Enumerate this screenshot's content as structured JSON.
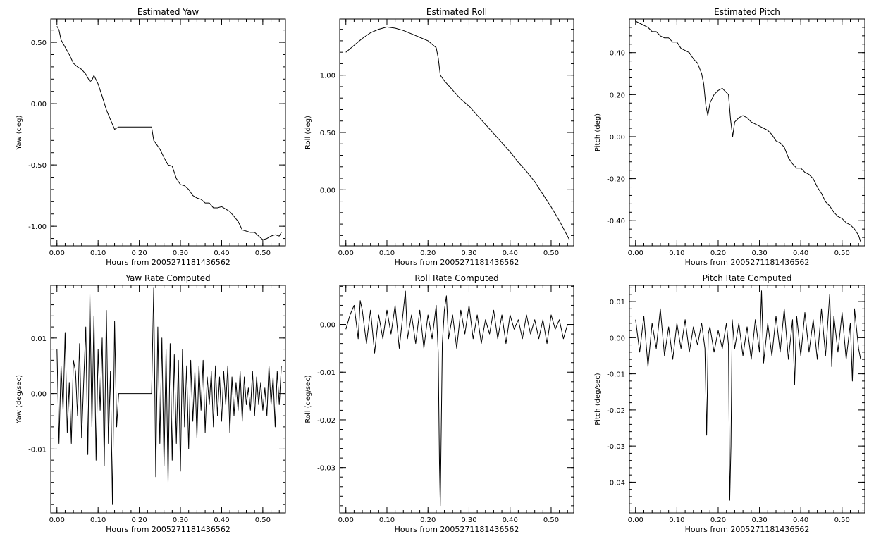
{
  "colors": {
    "background": "#ffffff",
    "ink": "#000000"
  },
  "chart_data": [
    {
      "type": "line",
      "title": "Estimated Yaw",
      "xlabel": "Hours from 2005271181436562",
      "ylabel": "Yaw (deg)",
      "xlim": [
        -0.015,
        0.555
      ],
      "ylim": [
        -1.16,
        0.69
      ],
      "xticks": [
        0,
        0.1,
        0.2,
        0.3,
        0.4,
        0.5
      ],
      "xticklabels": [
        "0.00",
        "0.10",
        "0.20",
        "0.30",
        "0.40",
        "0.50"
      ],
      "yticks": [
        0.5,
        0,
        -0.5,
        -1.0
      ],
      "yticklabels": [
        "0.50",
        "0.00",
        "-0.50",
        "-1.00"
      ],
      "grid": false,
      "series": [
        {
          "x": [
            0.0,
            0.005,
            0.01,
            0.02,
            0.03,
            0.04,
            0.05,
            0.06,
            0.07,
            0.08,
            0.085,
            0.09,
            0.1,
            0.11,
            0.12,
            0.13,
            0.14,
            0.15,
            0.2,
            0.23,
            0.235,
            0.25,
            0.26,
            0.27,
            0.28,
            0.29,
            0.3,
            0.31,
            0.32,
            0.33,
            0.34,
            0.35,
            0.36,
            0.37,
            0.38,
            0.39,
            0.4,
            0.41,
            0.42,
            0.43,
            0.44,
            0.45,
            0.46,
            0.47,
            0.48,
            0.49,
            0.5,
            0.51,
            0.52,
            0.53,
            0.54,
            0.545
          ],
          "y": [
            0.63,
            0.6,
            0.52,
            0.46,
            0.4,
            0.33,
            0.3,
            0.28,
            0.24,
            0.18,
            0.19,
            0.23,
            0.16,
            0.06,
            -0.05,
            -0.13,
            -0.21,
            -0.19,
            -0.19,
            -0.19,
            -0.3,
            -0.37,
            -0.44,
            -0.5,
            -0.51,
            -0.61,
            -0.66,
            -0.67,
            -0.7,
            -0.75,
            -0.77,
            -0.78,
            -0.81,
            -0.81,
            -0.85,
            -0.85,
            -0.84,
            -0.86,
            -0.88,
            -0.92,
            -0.96,
            -1.03,
            -1.04,
            -1.05,
            -1.05,
            -1.08,
            -1.11,
            -1.1,
            -1.08,
            -1.07,
            -1.08,
            -1.05
          ]
        }
      ]
    },
    {
      "type": "line",
      "title": "Estimated Roll",
      "xlabel": "Hours from 2005271181436562",
      "ylabel": "Roll (deg)",
      "xlim": [
        -0.015,
        0.555
      ],
      "ylim": [
        -0.49,
        1.49
      ],
      "xticks": [
        0,
        0.1,
        0.2,
        0.3,
        0.4,
        0.5
      ],
      "xticklabels": [
        "0.00",
        "0.10",
        "0.20",
        "0.30",
        "0.40",
        "0.50"
      ],
      "yticks": [
        1.0,
        0.5,
        0
      ],
      "yticklabels": [
        "1.00",
        "0.50",
        "0.00"
      ],
      "grid": false,
      "series": [
        {
          "x": [
            0.0,
            0.02,
            0.04,
            0.06,
            0.08,
            0.1,
            0.12,
            0.14,
            0.16,
            0.18,
            0.2,
            0.22,
            0.225,
            0.23,
            0.24,
            0.26,
            0.28,
            0.3,
            0.32,
            0.34,
            0.36,
            0.38,
            0.4,
            0.42,
            0.44,
            0.46,
            0.48,
            0.5,
            0.52,
            0.545
          ],
          "y": [
            1.2,
            1.26,
            1.32,
            1.37,
            1.4,
            1.42,
            1.41,
            1.39,
            1.36,
            1.33,
            1.3,
            1.24,
            1.15,
            1.0,
            0.95,
            0.87,
            0.79,
            0.73,
            0.65,
            0.57,
            0.49,
            0.41,
            0.33,
            0.24,
            0.16,
            0.07,
            -0.04,
            -0.15,
            -0.27,
            -0.44
          ]
        }
      ]
    },
    {
      "type": "line",
      "title": "Estimated Pitch",
      "xlabel": "Hours from 2005271181436562",
      "ylabel": "Pitch (deg)",
      "xlim": [
        -0.015,
        0.555
      ],
      "ylim": [
        -0.52,
        0.56
      ],
      "xticks": [
        0,
        0.1,
        0.2,
        0.3,
        0.4,
        0.5
      ],
      "xticklabels": [
        "0.00",
        "0.10",
        "0.20",
        "0.30",
        "0.40",
        "0.50"
      ],
      "yticks": [
        0.4,
        0.2,
        0,
        -0.2,
        -0.4
      ],
      "yticklabels": [
        "0.40",
        "0.20",
        "0.00",
        "-0.20",
        "-0.40"
      ],
      "grid": false,
      "series": [
        {
          "x": [
            0.0,
            0.01,
            0.02,
            0.03,
            0.04,
            0.05,
            0.06,
            0.07,
            0.08,
            0.09,
            0.1,
            0.11,
            0.12,
            0.13,
            0.14,
            0.15,
            0.16,
            0.165,
            0.17,
            0.175,
            0.18,
            0.19,
            0.2,
            0.21,
            0.22,
            0.225,
            0.23,
            0.235,
            0.24,
            0.25,
            0.26,
            0.27,
            0.28,
            0.29,
            0.3,
            0.31,
            0.32,
            0.33,
            0.34,
            0.35,
            0.36,
            0.37,
            0.38,
            0.39,
            0.4,
            0.41,
            0.42,
            0.43,
            0.44,
            0.45,
            0.46,
            0.47,
            0.48,
            0.49,
            0.5,
            0.51,
            0.52,
            0.53,
            0.54,
            0.545
          ],
          "y": [
            0.55,
            0.54,
            0.53,
            0.52,
            0.5,
            0.5,
            0.48,
            0.47,
            0.47,
            0.45,
            0.45,
            0.42,
            0.41,
            0.4,
            0.37,
            0.35,
            0.3,
            0.25,
            0.15,
            0.1,
            0.16,
            0.2,
            0.22,
            0.23,
            0.21,
            0.2,
            0.08,
            0.0,
            0.07,
            0.09,
            0.1,
            0.09,
            0.07,
            0.06,
            0.05,
            0.04,
            0.03,
            0.01,
            -0.02,
            -0.03,
            -0.05,
            -0.1,
            -0.13,
            -0.15,
            -0.15,
            -0.17,
            -0.18,
            -0.2,
            -0.24,
            -0.27,
            -0.31,
            -0.33,
            -0.36,
            -0.38,
            -0.39,
            -0.41,
            -0.42,
            -0.44,
            -0.47,
            -0.5
          ]
        }
      ]
    },
    {
      "type": "line",
      "title": "Yaw Rate Computed",
      "xlabel": "Hours from 2005271181436562",
      "ylabel": "Yaw (deg/sec)",
      "xlim": [
        -0.015,
        0.555
      ],
      "ylim": [
        -0.0215,
        0.0195
      ],
      "xticks": [
        0,
        0.1,
        0.2,
        0.3,
        0.4,
        0.5
      ],
      "xticklabels": [
        "0.00",
        "0.10",
        "0.20",
        "0.30",
        "0.40",
        "0.50"
      ],
      "yticks": [
        0.01,
        0,
        -0.01
      ],
      "yticklabels": [
        "0.01",
        "0.00",
        "-0.01"
      ],
      "grid": false,
      "series": [
        {
          "x": [
            0.0,
            0.005,
            0.01,
            0.015,
            0.02,
            0.025,
            0.03,
            0.035,
            0.04,
            0.045,
            0.05,
            0.055,
            0.06,
            0.065,
            0.07,
            0.075,
            0.08,
            0.085,
            0.09,
            0.095,
            0.1,
            0.105,
            0.11,
            0.115,
            0.12,
            0.125,
            0.13,
            0.135,
            0.14,
            0.145,
            0.15,
            0.23,
            0.235,
            0.24,
            0.245,
            0.25,
            0.255,
            0.26,
            0.265,
            0.27,
            0.275,
            0.28,
            0.285,
            0.29,
            0.295,
            0.3,
            0.305,
            0.31,
            0.315,
            0.32,
            0.325,
            0.33,
            0.335,
            0.34,
            0.345,
            0.35,
            0.355,
            0.36,
            0.365,
            0.37,
            0.375,
            0.38,
            0.385,
            0.39,
            0.395,
            0.4,
            0.405,
            0.41,
            0.415,
            0.42,
            0.425,
            0.43,
            0.435,
            0.44,
            0.445,
            0.45,
            0.455,
            0.46,
            0.465,
            0.47,
            0.475,
            0.48,
            0.485,
            0.49,
            0.495,
            0.5,
            0.505,
            0.51,
            0.515,
            0.52,
            0.525,
            0.53,
            0.535,
            0.54,
            0.545
          ],
          "y": [
            0.008,
            -0.009,
            0.005,
            -0.003,
            0.011,
            -0.007,
            0.002,
            -0.009,
            0.006,
            0.004,
            -0.004,
            0.009,
            -0.008,
            0.002,
            0.012,
            -0.011,
            0.018,
            -0.006,
            0.014,
            -0.012,
            0.008,
            -0.003,
            0.01,
            -0.013,
            0.015,
            -0.009,
            0.004,
            -0.02,
            0.013,
            -0.006,
            0.0,
            0.0,
            0.019,
            -0.015,
            0.012,
            -0.009,
            0.01,
            -0.013,
            0.008,
            -0.016,
            0.009,
            -0.012,
            0.007,
            -0.009,
            0.006,
            -0.014,
            0.008,
            -0.006,
            0.005,
            -0.01,
            0.006,
            -0.005,
            0.004,
            -0.008,
            0.005,
            -0.003,
            0.006,
            -0.007,
            0.003,
            -0.002,
            0.004,
            -0.006,
            0.005,
            -0.004,
            0.003,
            -0.005,
            0.004,
            -0.002,
            0.005,
            -0.007,
            0.003,
            -0.004,
            0.002,
            -0.003,
            0.004,
            -0.005,
            0.003,
            -0.002,
            0.001,
            -0.003,
            0.004,
            -0.004,
            0.003,
            -0.002,
            0.002,
            -0.003,
            0.001,
            -0.004,
            0.005,
            -0.002,
            0.003,
            -0.006,
            0.004,
            -0.002,
            0.005
          ]
        }
      ]
    },
    {
      "type": "line",
      "title": "Roll Rate Computed",
      "xlabel": "Hours from 2005271181436562",
      "ylabel": "Roll (deg/sec)",
      "xlim": [
        -0.015,
        0.555
      ],
      "ylim": [
        -0.0395,
        0.0082
      ],
      "xticks": [
        0,
        0.1,
        0.2,
        0.3,
        0.4,
        0.5
      ],
      "xticklabels": [
        "0.00",
        "0.10",
        "0.20",
        "0.30",
        "0.40",
        "0.50"
      ],
      "yticks": [
        0,
        -0.01,
        -0.02,
        -0.03
      ],
      "yticklabels": [
        "0.00",
        "-0.01",
        "-0.02",
        "-0.03"
      ],
      "grid": false,
      "series": [
        {
          "x": [
            0.0,
            0.01,
            0.02,
            0.03,
            0.035,
            0.04,
            0.05,
            0.06,
            0.07,
            0.08,
            0.09,
            0.1,
            0.11,
            0.12,
            0.13,
            0.14,
            0.145,
            0.15,
            0.16,
            0.17,
            0.18,
            0.19,
            0.2,
            0.21,
            0.22,
            0.225,
            0.228,
            0.23,
            0.235,
            0.24,
            0.245,
            0.25,
            0.26,
            0.27,
            0.28,
            0.29,
            0.3,
            0.31,
            0.32,
            0.33,
            0.34,
            0.35,
            0.36,
            0.37,
            0.38,
            0.39,
            0.4,
            0.41,
            0.42,
            0.43,
            0.44,
            0.45,
            0.46,
            0.47,
            0.48,
            0.49,
            0.5,
            0.51,
            0.52,
            0.53,
            0.54,
            0.545
          ],
          "y": [
            -0.001,
            0.002,
            0.004,
            -0.003,
            0.005,
            0.003,
            -0.004,
            0.003,
            -0.006,
            0.002,
            -0.003,
            0.003,
            -0.002,
            0.004,
            -0.005,
            0.003,
            0.007,
            -0.003,
            0.002,
            -0.004,
            0.003,
            -0.005,
            0.002,
            -0.003,
            0.004,
            -0.006,
            -0.029,
            -0.038,
            -0.004,
            0.003,
            0.006,
            -0.003,
            0.002,
            -0.005,
            0.003,
            -0.002,
            0.004,
            -0.003,
            0.002,
            -0.004,
            0.001,
            -0.002,
            0.003,
            -0.003,
            0.002,
            -0.004,
            0.002,
            -0.001,
            0.001,
            -0.003,
            0.002,
            -0.002,
            0.001,
            -0.003,
            0.001,
            -0.004,
            0.002,
            -0.001,
            0.001,
            -0.003,
            0.0,
            0.0
          ]
        }
      ]
    },
    {
      "type": "line",
      "title": "Pitch Rate Computed",
      "xlabel": "Hours from 2005271181436562",
      "ylabel": "Pitch (deg/sec)",
      "xlim": [
        -0.015,
        0.555
      ],
      "ylim": [
        -0.0485,
        0.0145
      ],
      "xticks": [
        0,
        0.1,
        0.2,
        0.3,
        0.4,
        0.5
      ],
      "xticklabels": [
        "0.00",
        "0.10",
        "0.20",
        "0.30",
        "0.40",
        "0.50"
      ],
      "yticks": [
        0.01,
        0,
        -0.01,
        -0.02,
        -0.03,
        -0.04
      ],
      "yticklabels": [
        "0.01",
        "0.00",
        "-0.01",
        "-0.02",
        "-0.03",
        "-0.04"
      ],
      "grid": false,
      "series": [
        {
          "x": [
            0.0,
            0.01,
            0.02,
            0.03,
            0.04,
            0.05,
            0.06,
            0.07,
            0.08,
            0.09,
            0.1,
            0.11,
            0.12,
            0.13,
            0.14,
            0.15,
            0.16,
            0.168,
            0.172,
            0.176,
            0.18,
            0.19,
            0.2,
            0.21,
            0.22,
            0.225,
            0.228,
            0.231,
            0.234,
            0.24,
            0.25,
            0.26,
            0.27,
            0.28,
            0.29,
            0.3,
            0.305,
            0.31,
            0.32,
            0.33,
            0.34,
            0.35,
            0.36,
            0.37,
            0.38,
            0.385,
            0.39,
            0.4,
            0.41,
            0.42,
            0.43,
            0.44,
            0.45,
            0.46,
            0.47,
            0.475,
            0.48,
            0.49,
            0.5,
            0.51,
            0.52,
            0.525,
            0.53,
            0.54,
            0.545
          ],
          "y": [
            0.005,
            -0.004,
            0.006,
            -0.008,
            0.004,
            -0.003,
            0.008,
            -0.005,
            0.003,
            -0.006,
            0.004,
            -0.003,
            0.005,
            -0.004,
            0.003,
            -0.002,
            0.004,
            -0.003,
            -0.027,
            0.001,
            0.003,
            -0.004,
            0.002,
            -0.003,
            0.004,
            -0.002,
            -0.045,
            -0.03,
            0.005,
            -0.003,
            0.004,
            -0.005,
            0.003,
            -0.006,
            0.005,
            -0.004,
            0.013,
            -0.007,
            0.004,
            -0.005,
            0.006,
            -0.004,
            0.008,
            -0.006,
            0.005,
            -0.013,
            0.006,
            -0.005,
            0.007,
            -0.004,
            0.005,
            -0.006,
            0.008,
            -0.005,
            0.012,
            -0.008,
            0.006,
            -0.004,
            0.007,
            -0.006,
            0.004,
            -0.012,
            0.008,
            -0.003,
            -0.006
          ]
        }
      ]
    }
  ]
}
